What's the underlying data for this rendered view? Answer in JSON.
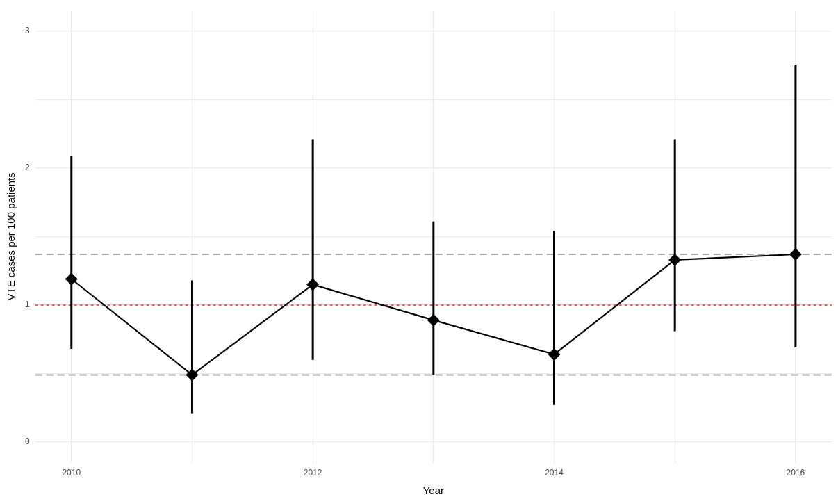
{
  "chart_data": {
    "type": "line",
    "xlabel": "Year",
    "ylabel": "VTE cases per 100 patients",
    "x": [
      2010,
      2011,
      2012,
      2013,
      2014,
      2015,
      2016
    ],
    "series": [
      {
        "color": "#000000",
        "values": [
          1.19,
          0.49,
          1.15,
          0.89,
          0.64,
          1.33,
          1.37
        ],
        "errors": [
          [
            0.68,
            2.09
          ],
          [
            0.21,
            1.18
          ],
          [
            0.6,
            2.21
          ],
          [
            0.49,
            1.61
          ],
          [
            0.27,
            1.54
          ],
          [
            0.81,
            2.21
          ],
          [
            0.69,
            2.75
          ]
        ]
      }
    ],
    "xlim": [
      2009.7,
      2016.3
    ],
    "xticks": [
      2010,
      {
        "value": 2011,
        "label": null
      },
      2012,
      {
        "value": 2013,
        "label": null
      },
      2014,
      {
        "value": 2015,
        "label": null
      },
      2016
    ],
    "ylim": [
      -0.15,
      3.15
    ],
    "yticks": [
      0,
      {
        "value": 0.5,
        "label": null
      },
      1,
      {
        "value": 1.5,
        "label": null
      },
      2,
      {
        "value": 2.5,
        "label": null
      },
      3
    ],
    "ref_lines": [
      {
        "axis": "y",
        "value": 1.37,
        "color": "#aaaaaa",
        "line_style": "dashed"
      },
      {
        "axis": "y",
        "value": 0.49,
        "color": "#aaaaaa",
        "line_style": "dashed"
      },
      {
        "axis": "y",
        "value": 1,
        "color": "#e8303a",
        "line_style": "dotted"
      }
    ],
    "grid": true,
    "legend": false,
    "marker": "diamond",
    "line_style": "solid"
  }
}
